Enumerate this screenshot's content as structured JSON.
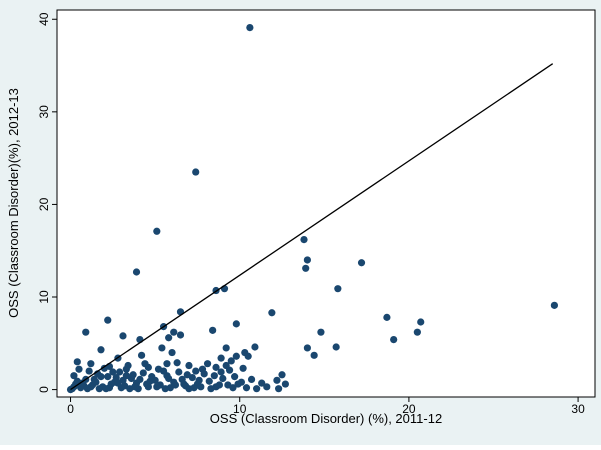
{
  "chart_data": {
    "type": "scatter",
    "title": "",
    "xlabel": "OSS (Classroom Disorder) (%), 2011-12",
    "ylabel": "OSS (Classroom Disorder)(%), 2012-13",
    "xlim": [
      -0.8,
      31
    ],
    "ylim": [
      -0.8,
      41
    ],
    "xticks": [
      0,
      10,
      20,
      30
    ],
    "yticks": [
      0,
      10,
      20,
      30,
      40
    ],
    "grid": false,
    "legend": "none",
    "colors": {
      "outer_background": "#eaf2f3",
      "plot_background": "#ffffff",
      "marker": "#1a476f",
      "reference_line": "#000000"
    },
    "reference_line": {
      "x": [
        0,
        28.5
      ],
      "y": [
        0,
        35.2
      ]
    },
    "series": [
      {
        "points": [
          [
            10.6,
            39.1
          ],
          [
            7.4,
            23.5
          ],
          [
            5.1,
            17.1
          ],
          [
            13.8,
            16.2
          ],
          [
            14.0,
            14.0
          ],
          [
            13.9,
            13.1
          ],
          [
            17.2,
            13.7
          ],
          [
            3.9,
            12.7
          ],
          [
            8.6,
            10.7
          ],
          [
            9.1,
            10.9
          ],
          [
            15.8,
            10.9
          ],
          [
            28.6,
            9.1
          ],
          [
            6.5,
            8.4
          ],
          [
            11.9,
            8.3
          ],
          [
            18.7,
            7.8
          ],
          [
            20.7,
            7.3
          ],
          [
            20.5,
            6.2
          ],
          [
            19.1,
            5.4
          ],
          [
            14.8,
            6.2
          ],
          [
            2.2,
            7.5
          ],
          [
            0.9,
            6.2
          ],
          [
            5.5,
            6.8
          ],
          [
            8.4,
            6.4
          ],
          [
            9.8,
            7.1
          ],
          [
            6.1,
            6.2
          ],
          [
            6.5,
            5.9
          ],
          [
            5.8,
            5.6
          ],
          [
            4.1,
            5.4
          ],
          [
            3.1,
            5.8
          ],
          [
            14.0,
            4.5
          ],
          [
            14.4,
            3.7
          ],
          [
            15.7,
            4.6
          ],
          [
            9.2,
            4.5
          ],
          [
            10.3,
            4.0
          ],
          [
            10.9,
            4.6
          ],
          [
            9.8,
            3.6
          ],
          [
            10.5,
            3.6
          ],
          [
            8.9,
            3.4
          ],
          [
            9.5,
            3.1
          ],
          [
            5.4,
            4.5
          ],
          [
            6.0,
            4.0
          ],
          [
            4.2,
            3.7
          ],
          [
            2.8,
            3.4
          ],
          [
            1.8,
            4.3
          ],
          [
            0.4,
            3.0
          ],
          [
            1.2,
            2.8
          ],
          [
            2.3,
            2.5
          ],
          [
            3.3,
            2.2
          ],
          [
            4.6,
            2.4
          ],
          [
            5.7,
            2.8
          ],
          [
            7.0,
            2.6
          ],
          [
            7.8,
            2.2
          ],
          [
            8.6,
            2.4
          ],
          [
            9.4,
            2.1
          ],
          [
            10.2,
            2.3
          ],
          [
            12.5,
            1.6
          ],
          [
            12.2,
            1.0
          ],
          [
            11.3,
            0.7
          ],
          [
            12.7,
            0.6
          ],
          [
            12.3,
            0.1
          ],
          [
            11.6,
            0.3
          ],
          [
            0.1,
            0.1
          ],
          [
            0.3,
            0.6
          ],
          [
            0.6,
            0.2
          ],
          [
            0.9,
            1.1
          ],
          [
            1.3,
            0.5
          ],
          [
            1.6,
            1.7
          ],
          [
            1.9,
            0.3
          ],
          [
            2.2,
            1.4
          ],
          [
            2.6,
            0.8
          ],
          [
            2.9,
            1.9
          ],
          [
            3.2,
            0.4
          ],
          [
            3.6,
            1.2
          ],
          [
            3.9,
            0.7
          ],
          [
            4.3,
            1.8
          ],
          [
            4.6,
            0.3
          ],
          [
            5.0,
            1.0
          ],
          [
            5.3,
            0.5
          ],
          [
            5.7,
            1.5
          ],
          [
            6.1,
            0.8
          ],
          [
            6.4,
            1.9
          ],
          [
            6.8,
            0.4
          ],
          [
            7.2,
            1.3
          ],
          [
            7.5,
            0.6
          ],
          [
            7.9,
            1.7
          ],
          [
            8.2,
            0.9
          ],
          [
            8.6,
            0.3
          ],
          [
            9.0,
            1.2
          ],
          [
            9.3,
            0.5
          ],
          [
            9.7,
            1.4
          ],
          [
            10.1,
            0.8
          ],
          [
            10.4,
            0.2
          ],
          [
            0.2,
            1.5
          ],
          [
            0.5,
            2.2
          ],
          [
            0.8,
            0.4
          ],
          [
            1.1,
            2.0
          ],
          [
            1.4,
            1.1
          ],
          [
            1.7,
            0.1
          ],
          [
            2.0,
            2.3
          ],
          [
            2.4,
            0.6
          ],
          [
            2.7,
            1.3
          ],
          [
            3.0,
            0.2
          ],
          [
            3.4,
            2.6
          ],
          [
            3.7,
            1.6
          ],
          [
            4.0,
            0.1
          ],
          [
            4.4,
            2.8
          ],
          [
            4.8,
            1.4
          ],
          [
            5.1,
            0.3
          ],
          [
            5.5,
            2.0
          ],
          [
            5.9,
            0.2
          ],
          [
            6.3,
            2.9
          ],
          [
            6.6,
            1.1
          ],
          [
            7.0,
            0.1
          ],
          [
            7.4,
            2.0
          ],
          [
            7.7,
            0.3
          ],
          [
            8.1,
            2.8
          ],
          [
            8.5,
            1.5
          ],
          [
            8.8,
            0.5
          ],
          [
            9.2,
            2.6
          ],
          [
            9.6,
            0.2
          ],
          [
            0.0,
            0.0
          ],
          [
            0.4,
            0.9
          ],
          [
            1.0,
            0.1
          ],
          [
            1.5,
            0.8
          ],
          [
            2.1,
            0.1
          ],
          [
            2.5,
            1.9
          ],
          [
            3.1,
            1.0
          ],
          [
            3.5,
            0.1
          ],
          [
            4.1,
            1.1
          ],
          [
            4.5,
            0.6
          ],
          [
            5.2,
            2.2
          ],
          [
            5.8,
            1.2
          ],
          [
            6.2,
            0.5
          ],
          [
            6.9,
            1.6
          ],
          [
            7.6,
            1.0
          ],
          [
            8.3,
            0.1
          ],
          [
            8.9,
            1.9
          ],
          [
            9.9,
            0.6
          ],
          [
            10.7,
            1.1
          ],
          [
            11.0,
            0.1
          ],
          [
            0.2,
            0.3
          ],
          [
            0.7,
            0.7
          ],
          [
            1.2,
            0.3
          ],
          [
            1.8,
            1.4
          ],
          [
            2.3,
            0.2
          ],
          [
            2.8,
            0.7
          ],
          [
            3.3,
            1.5
          ],
          [
            3.8,
            0.3
          ],
          [
            4.7,
            0.9
          ],
          [
            5.6,
            0.1
          ],
          [
            6.7,
            0.6
          ],
          [
            7.3,
            0.2
          ]
        ]
      }
    ]
  }
}
